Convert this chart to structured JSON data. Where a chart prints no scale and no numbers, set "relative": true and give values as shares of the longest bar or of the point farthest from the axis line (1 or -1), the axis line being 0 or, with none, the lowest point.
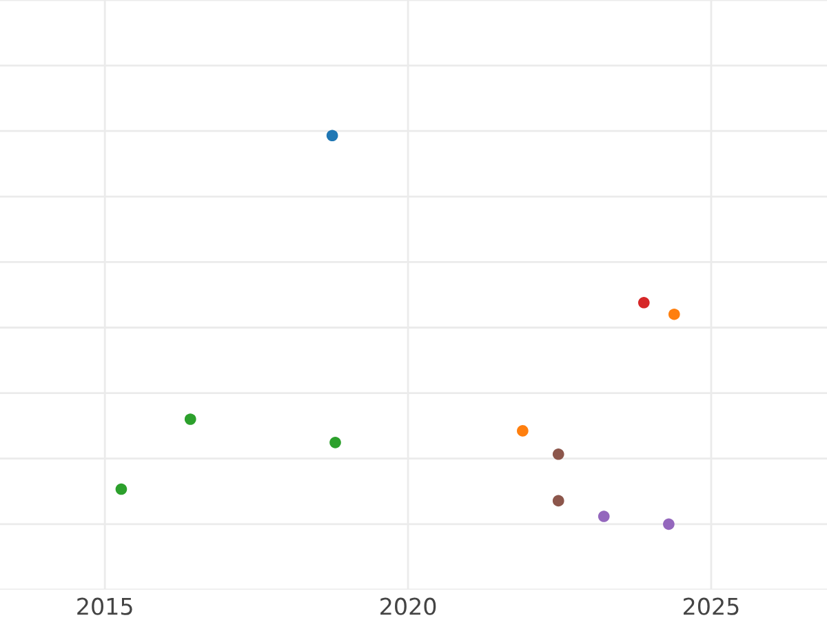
{
  "chart_data": {
    "type": "scatter",
    "relative": true,
    "grid": true,
    "marker": "circle",
    "tick_labels": "x",
    "xlim": [
      2013.27,
      2026.91
    ],
    "xticks": [
      2015,
      2020,
      2025
    ],
    "series": [
      {
        "color": "#1f77b4",
        "x": [
          2018.75
        ],
        "values": [
          1.0
        ]
      },
      {
        "color": "#ff7f0e",
        "x": [
          2024.39,
          2021.89
        ],
        "values": [
          0.54,
          0.24
        ]
      },
      {
        "color": "#2ca02c",
        "x": [
          2016.41,
          2018.8,
          2015.27
        ],
        "values": [
          0.27,
          0.21,
          0.09
        ]
      },
      {
        "color": "#d62728",
        "x": [
          2023.89
        ],
        "values": [
          0.57
        ]
      },
      {
        "color": "#9467bd",
        "x": [
          2023.23,
          2024.3
        ],
        "values": [
          0.02,
          0.0
        ]
      },
      {
        "color": "#8c564b",
        "x": [
          2022.48,
          2022.48
        ],
        "values": [
          0.18,
          0.06
        ]
      }
    ]
  }
}
